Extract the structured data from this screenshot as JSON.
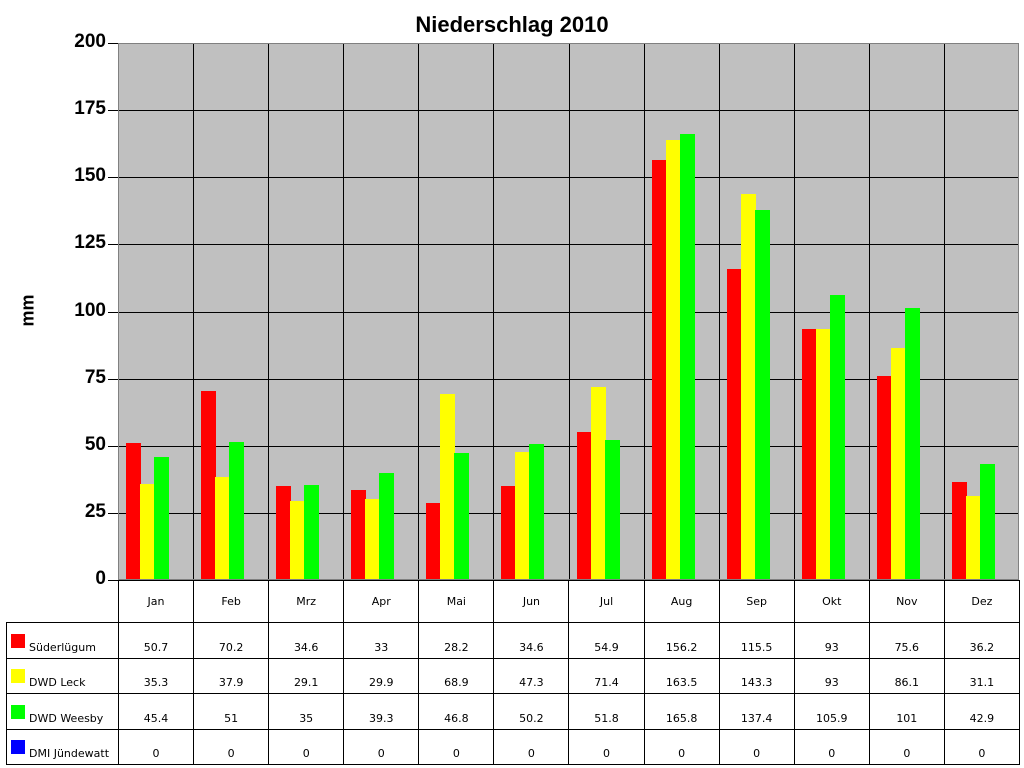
{
  "chart_data": {
    "type": "bar",
    "title": "Niederschlag 2010",
    "xlabel": "",
    "ylabel": "mm",
    "ylim": [
      0,
      200
    ],
    "yticks": [
      0,
      25,
      50,
      75,
      100,
      125,
      150,
      175,
      200
    ],
    "grid": true,
    "legend_position": "data table below chart",
    "categories": [
      "Jan",
      "Feb",
      "Mrz",
      "Apr",
      "Mai",
      "Jun",
      "Jul",
      "Aug",
      "Sep",
      "Okt",
      "Nov",
      "Dez"
    ],
    "series": [
      {
        "name": "Süderlügum",
        "color": "#ff0000",
        "values": [
          50.7,
          70.2,
          34.6,
          33,
          28.2,
          34.6,
          54.9,
          156.2,
          115.5,
          93,
          75.6,
          36.2
        ]
      },
      {
        "name": "DWD Leck",
        "color": "#ffff00",
        "values": [
          35.3,
          37.9,
          29.1,
          29.9,
          68.9,
          47.3,
          71.4,
          163.5,
          143.3,
          93,
          86.1,
          31.1
        ]
      },
      {
        "name": "DWD Weesby",
        "color": "#00ff00",
        "values": [
          45.4,
          51,
          35,
          39.3,
          46.8,
          50.2,
          51.8,
          165.8,
          137.4,
          105.9,
          101,
          42.9
        ]
      },
      {
        "name": "DMI Jündewatt",
        "color": "#0000ff",
        "values": [
          0,
          0,
          0,
          0,
          0,
          0,
          0,
          0,
          0,
          0,
          0,
          0
        ]
      }
    ],
    "table_values": [
      [
        "50.7",
        "70.2",
        "34.6",
        "33",
        "28.2",
        "34.6",
        "54.9",
        "156.2",
        "115.5",
        "93",
        "75.6",
        "36.2"
      ],
      [
        "35.3",
        "37.9",
        "29.1",
        "29.9",
        "68.9",
        "47.3",
        "71.4",
        "163.5",
        "143.3",
        "93",
        "86.1",
        "31.1"
      ],
      [
        "45.4",
        "51",
        "35",
        "39.3",
        "46.8",
        "50.2",
        "51.8",
        "165.8",
        "137.4",
        "105.9",
        "101",
        "42.9"
      ],
      [
        "0",
        "0",
        "0",
        "0",
        "0",
        "0",
        "0",
        "0",
        "0",
        "0",
        "0",
        "0"
      ]
    ]
  },
  "colors": {
    "plot_background": "#c0c0c0",
    "gridline": "#000000"
  }
}
